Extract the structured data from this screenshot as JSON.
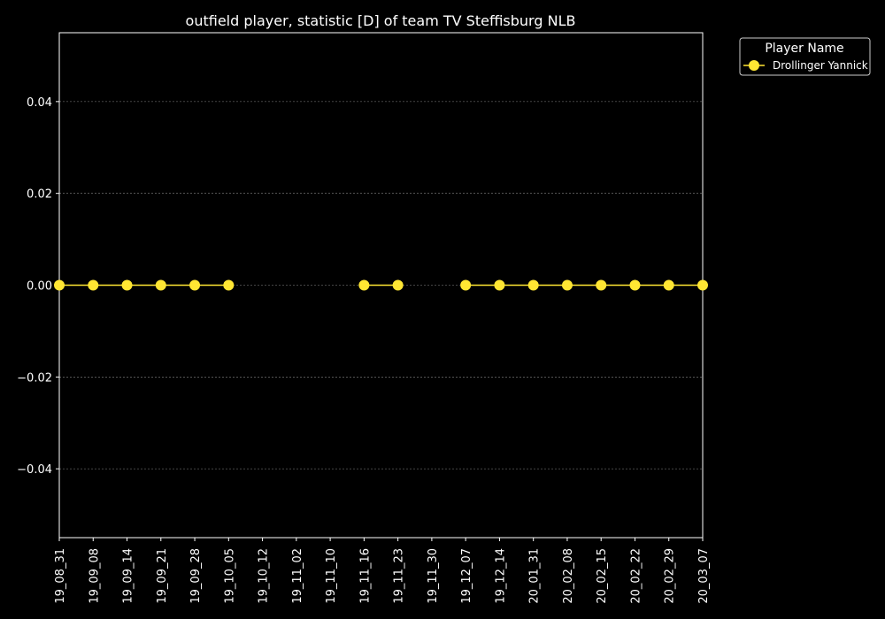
{
  "chart_data": {
    "type": "line",
    "title": "outfield player, statistic [D] of team TV Steffisburg NLB",
    "xlabel": "",
    "ylabel": "",
    "categories": [
      "19_08_31",
      "19_09_08",
      "19_09_14",
      "19_09_21",
      "19_09_28",
      "19_10_05",
      "19_10_12",
      "19_11_02",
      "19_11_10",
      "19_11_16",
      "19_11_23",
      "19_11_30",
      "19_12_07",
      "19_12_14",
      "20_01_31",
      "20_02_08",
      "20_02_15",
      "20_02_22",
      "20_02_29",
      "20_03_07"
    ],
    "series": [
      {
        "name": "Drollinger Yannick",
        "color": "#ffe633",
        "values": [
          0,
          0,
          0,
          0,
          0,
          0,
          null,
          null,
          null,
          0,
          0,
          null,
          0,
          0,
          0,
          0,
          0,
          0,
          0,
          0
        ]
      }
    ],
    "ylim": [
      -0.055,
      0.055
    ],
    "yticks": [
      -0.04,
      -0.02,
      0.0,
      0.02,
      0.04
    ],
    "ytick_labels": [
      "−0.04",
      "−0.02",
      "0.00",
      "0.02",
      "0.04"
    ],
    "grid": "horizontal dotted",
    "legend": {
      "title": "Player Name",
      "placement": "outside top-right"
    },
    "colors": {
      "background": "#000000",
      "axis": "#ffffff",
      "grid": "#888888"
    }
  }
}
